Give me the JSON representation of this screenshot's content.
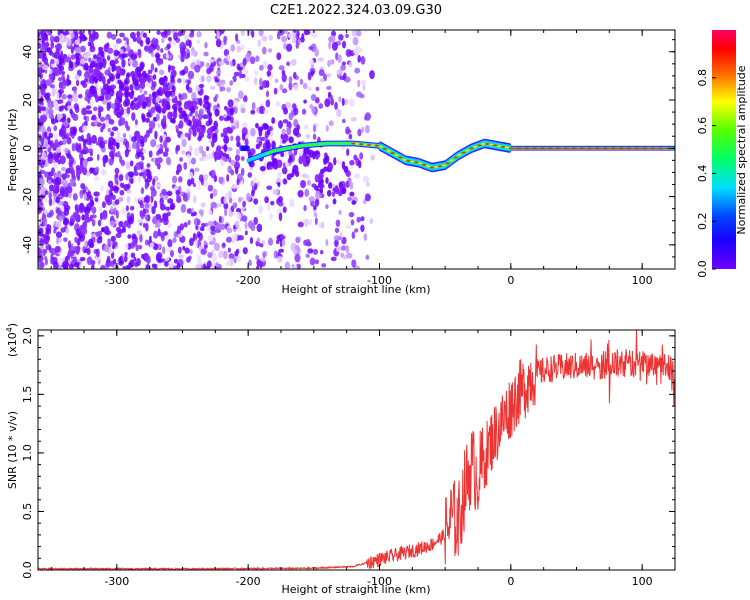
{
  "figure_title": "C2E1.2022.324.03.09.G30",
  "chart_data": [
    {
      "type": "heatmap",
      "xlabel": "Height of straight line (km)",
      "ylabel": "Frequency (Hz)",
      "xlim": [
        -360,
        125
      ],
      "ylim": [
        -50,
        49
      ],
      "x_ticks": [
        -300,
        -200,
        -100,
        0,
        100
      ],
      "y_ticks": [
        -40,
        -20,
        0,
        20,
        40
      ],
      "colorbar": {
        "label": "Normalized spectral amplitude",
        "range": [
          0,
          1
        ],
        "ticks": [
          0.0,
          0.2,
          0.4,
          0.6,
          0.8
        ],
        "tick_labels": [
          "0.0",
          "0.2",
          "0.4",
          "0.6",
          "0.8"
        ],
        "colormap": [
          "#6a00ff",
          "#0000ff",
          "#00ffff",
          "#00ff00",
          "#ffff00",
          "#ff0000",
          "#ff0066"
        ]
      },
      "ridge": {
        "x": [
          -200,
          -180,
          -160,
          -140,
          -120,
          -100,
          -90,
          -80,
          -70,
          -60,
          -50,
          -40,
          -30,
          -20,
          -10,
          0,
          50,
          100,
          125
        ],
        "y": [
          -5,
          -1,
          1,
          2,
          2,
          1,
          -2,
          -5,
          -6,
          -8,
          -7,
          -3,
          0,
          2,
          1,
          0,
          0,
          0,
          0
        ]
      }
    },
    {
      "type": "line",
      "xlabel": "Height of straight line (km)",
      "ylabel": "SNR (10 * v/v)",
      "y_multiplier": "(x10",
      "y_multiplier_exp": "4",
      "y_multiplier_close": ")",
      "xlim": [
        -360,
        125
      ],
      "ylim": [
        0,
        2.05
      ],
      "x_ticks": [
        -300,
        -200,
        -100,
        0,
        100
      ],
      "y_ticks": [
        0.0,
        0.5,
        1.0,
        1.5,
        2.0
      ],
      "y_tick_labels": [
        "0.0",
        "0.5",
        "1.0",
        "1.5",
        "2.0"
      ],
      "line_color": "#ee3333",
      "series": [
        {
          "x": [
            -360,
            -300,
            -250,
            -200,
            -150,
            -120,
            -110,
            -100,
            -90,
            -80,
            -70,
            -60,
            -50,
            -45,
            -40,
            -35,
            -30,
            -25,
            -20,
            -15,
            -10,
            -5,
            0,
            5,
            10,
            15,
            20,
            25,
            30,
            40,
            50,
            60,
            70,
            80,
            90,
            100,
            110,
            120,
            125
          ],
          "y": [
            0.01,
            0.01,
            0.01,
            0.012,
            0.015,
            0.03,
            0.06,
            0.09,
            0.12,
            0.15,
            0.18,
            0.22,
            0.3,
            0.45,
            0.4,
            0.7,
            0.9,
            0.8,
            0.95,
            1.1,
            1.2,
            1.3,
            1.4,
            1.5,
            1.55,
            1.65,
            1.68,
            1.7,
            1.72,
            1.73,
            1.74,
            1.74,
            1.75,
            1.75,
            1.76,
            1.77,
            1.76,
            1.75,
            1.7
          ]
        }
      ]
    }
  ]
}
